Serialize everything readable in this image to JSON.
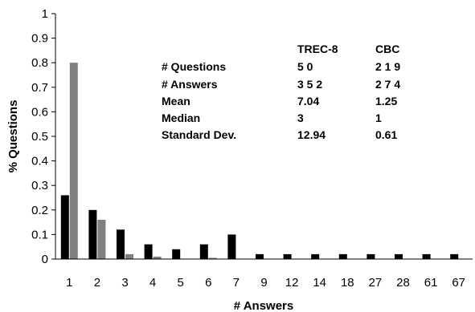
{
  "chart_data": {
    "type": "bar",
    "xlabel": "# Answers",
    "ylabel": "% Questions",
    "ylim": [
      0,
      1
    ],
    "yticks": [
      "0",
      "0.1",
      "0.2",
      "0.3",
      "0.4",
      "0.5",
      "0.6",
      "0.7",
      "0.8",
      "0.9",
      "1"
    ],
    "grid": false,
    "categories": [
      "1",
      "2",
      "3",
      "4",
      "5",
      "6",
      "7",
      "9",
      "12",
      "14",
      "18",
      "27",
      "28",
      "61",
      "67"
    ],
    "series": [
      {
        "name": "TREC-8",
        "color": "#000000",
        "values": [
          0.26,
          0.2,
          0.12,
          0.06,
          0.04,
          0.06,
          0.1,
          0.02,
          0.02,
          0.02,
          0.02,
          0.02,
          0.02,
          0.02,
          0.02
        ]
      },
      {
        "name": "CBC",
        "color": "#808080",
        "values": [
          0.8,
          0.16,
          0.02,
          0.01,
          0.0,
          0.005,
          0.0,
          0.0,
          0.0,
          0.0,
          0.0,
          0.0,
          0.0,
          0.0,
          0.0
        ]
      }
    ],
    "stats_table": {
      "columns": [
        "TREC-8",
        "CBC"
      ],
      "rows": [
        {
          "label": "# Questions",
          "values": [
            "5 0",
            "2 1 9"
          ]
        },
        {
          "label": "# Answers",
          "values": [
            "3 5 2",
            "2 7 4"
          ]
        },
        {
          "label": "Mean",
          "values": [
            "7.04",
            "1.25"
          ]
        },
        {
          "label": "Median",
          "values": [
            "3",
            "1"
          ]
        },
        {
          "label": "Standard Dev.",
          "values": [
            "12.94",
            "0.61"
          ]
        }
      ]
    }
  }
}
